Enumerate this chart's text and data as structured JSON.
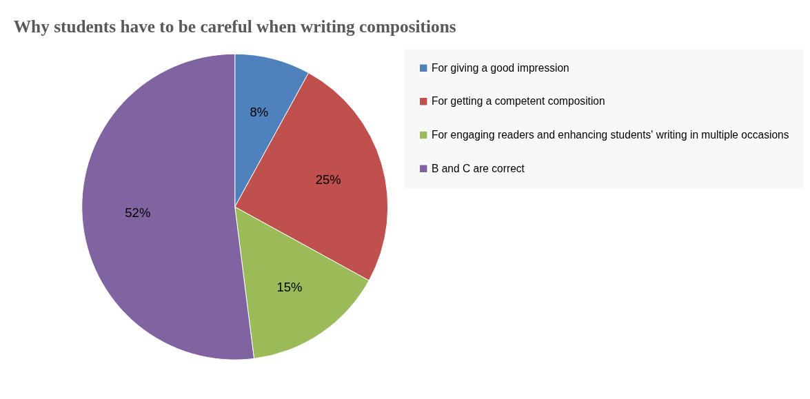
{
  "chart_data": {
    "type": "pie",
    "title": "Why students have to be careful when writing compositions",
    "categories": [
      "For giving a good impression",
      "For getting a competent composition",
      "For engaging readers and enhancing students' writing in multiple occasions",
      "B and C are correct"
    ],
    "values": [
      8,
      25,
      15,
      52
    ],
    "colors": [
      "#4f81bd",
      "#c0504d",
      "#9bbb59",
      "#8064a2"
    ],
    "value_labels": [
      "8%",
      "25%",
      "15%",
      "52%"
    ],
    "legend": "right"
  }
}
